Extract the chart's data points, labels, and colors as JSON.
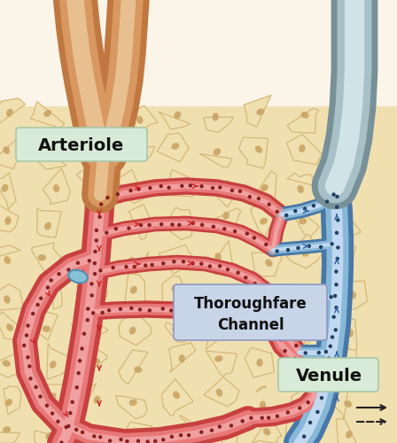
{
  "bg_color_top": "#faf5e8",
  "bg_color_main": "#f0e0b0",
  "tissue_cell_color": "#f0e0b0",
  "tissue_cell_edge": "#d4b87a",
  "tissue_cell_nucleus": "#c8a060",
  "art_outer": "#c84040",
  "art_inner": "#e87878",
  "art_highlight": "#f0a0a0",
  "ven_outer": "#4878a8",
  "ven_inner": "#88b8d8",
  "ven_highlight": "#c0d8f0",
  "artery_top_outer": "#c07840",
  "artery_top_inner": "#d89860",
  "artery_top_light": "#e8c090",
  "vein_top_outer": "#789098",
  "vein_top_inner": "#a8c0c8",
  "vein_top_light": "#d0e4e8",
  "sphincter_color": "#88c0d8",
  "sphincter_edge": "#5090b0",
  "label_art_bg": "#d8ead8",
  "label_art_edge": "#a8c8a8",
  "label_tc_bg": "#c8d4e8",
  "label_tc_edge": "#9098c0",
  "label_ven_bg": "#d8ead8",
  "label_ven_edge": "#a8c8a8",
  "arrow_red": "#cc2020",
  "arrow_blue": "#3060a0",
  "arrow_black": "#222222",
  "dot_red": "#882020",
  "dot_blue": "#204060",
  "label_arteriole": "Arteriole",
  "label_thoroughfare": "Thoroughfare\nChannel",
  "label_venule": "Venule",
  "fig_width": 4.48,
  "fig_height": 5.0,
  "dpi": 100
}
